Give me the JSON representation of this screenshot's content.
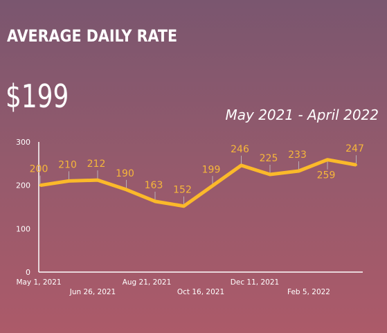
{
  "header": {
    "title": "AVERAGE DAILY RATE",
    "value": "$199",
    "period": "May 2021 - April 2022"
  },
  "colors": {
    "line": "#fbb92a",
    "label": "#f7b73a",
    "axis": "#ffffff",
    "tick_text": "#ffffff",
    "leader": "#b9b0b6"
  },
  "chart_data": {
    "type": "line",
    "title": "",
    "xlabel": "",
    "ylabel": "",
    "ylim": [
      0,
      300
    ],
    "yticks": [
      0,
      100,
      200,
      300
    ],
    "grid": false,
    "x_tick_labels": [
      "May 1, 2021",
      "Jun 26, 2021",
      "Aug 21, 2021",
      "Oct 16, 2021",
      "Dec 11, 2021",
      "Feb 5, 2022"
    ],
    "series": [
      {
        "values": [
          200,
          210,
          212,
          190,
          163,
          152,
          199,
          246,
          225,
          233,
          259,
          247
        ]
      }
    ],
    "data_labels": [
      200,
      210,
      212,
      190,
      163,
      152,
      199,
      246,
      225,
      233,
      259,
      247
    ]
  }
}
